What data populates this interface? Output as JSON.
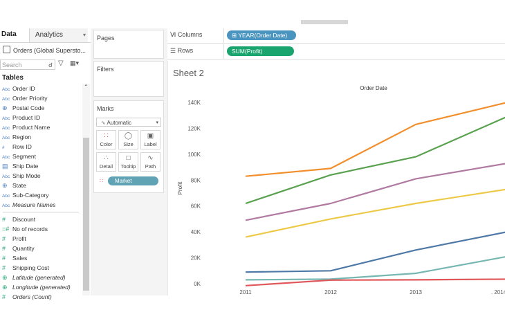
{
  "left_pane": {
    "tab_data": "Data",
    "tab_analytics": "Analytics",
    "datasource": "Orders (Global Supersto...",
    "search_placeholder": "Search",
    "tables_heading": "Tables",
    "dimensions": [
      {
        "icon": "Abc",
        "label": "Order ID"
      },
      {
        "icon": "Abc",
        "label": "Order Priority"
      },
      {
        "icon": "globe-icon",
        "label": "Postal Code"
      },
      {
        "icon": "Abc",
        "label": "Product ID"
      },
      {
        "icon": "Abc",
        "label": "Product Name"
      },
      {
        "icon": "Abc",
        "label": "Region"
      },
      {
        "icon": "#",
        "label": "Row ID"
      },
      {
        "icon": "Abc",
        "label": "Segment"
      },
      {
        "icon": "calendar-icon",
        "label": "Ship Date"
      },
      {
        "icon": "Abc",
        "label": "Ship Mode"
      },
      {
        "icon": "globe-icon",
        "label": "State"
      },
      {
        "icon": "Abc",
        "label": "Sub-Category"
      },
      {
        "icon": "Abc",
        "label": "Measure Names",
        "italic": true
      }
    ],
    "measures": [
      {
        "icon": "#",
        "label": "Discount"
      },
      {
        "icon": "=#",
        "label": "No of records"
      },
      {
        "icon": "#",
        "label": "Profit"
      },
      {
        "icon": "#",
        "label": "Quantity"
      },
      {
        "icon": "#",
        "label": "Sales"
      },
      {
        "icon": "#",
        "label": "Shipping Cost"
      },
      {
        "icon": "globe-icon",
        "label": "Latitude (generated)",
        "italic": true
      },
      {
        "icon": "globe-icon",
        "label": "Longitude (generated)",
        "italic": true
      },
      {
        "icon": "#",
        "label": "Orders (Count)",
        "italic": true
      }
    ]
  },
  "cards": {
    "pages": "Pages",
    "filters": "Filters",
    "marks": "Marks",
    "mark_type": "Automatic",
    "buttons": {
      "color": "Color",
      "size": "Size",
      "label": "Label",
      "detail": "Detail",
      "tooltip": "Tooltip",
      "path": "Path"
    },
    "marks_pill": "Market"
  },
  "shelves": {
    "columns_label": "Columns",
    "rows_label": "Rows",
    "columns_pill": "YEAR(Order Date)",
    "rows_pill": "SUM(Profit)"
  },
  "sheet_title": "Sheet 2",
  "chart_data": {
    "type": "line",
    "title": "Order Date",
    "ylabel": "Profit",
    "x": [
      "2011",
      "2012",
      "2013",
      ". 2014"
    ],
    "y_ticks": [
      "0K",
      "20K",
      "40K",
      "60K",
      "80K",
      "100K",
      "120K",
      "140K"
    ],
    "ylim": [
      0,
      140000
    ],
    "grid": false,
    "series": [
      {
        "color": "#f28e2b",
        "values": [
          83000,
          89000,
          123000,
          140000
        ]
      },
      {
        "color": "#59a14f",
        "values": [
          62000,
          84000,
          98000,
          129000
        ]
      },
      {
        "color": "#b07aa1",
        "values": [
          49000,
          62000,
          81000,
          93000
        ]
      },
      {
        "color": "#edc948",
        "values": [
          36000,
          50000,
          62000,
          73000
        ]
      },
      {
        "color": "#4e79a7",
        "values": [
          9000,
          10000,
          26000,
          40000
        ]
      },
      {
        "color": "#76b7b2",
        "values": [
          3000,
          3500,
          8000,
          21000
        ]
      },
      {
        "color": "#e15759",
        "values": [
          -1500,
          2800,
          3000,
          3500
        ]
      }
    ]
  }
}
